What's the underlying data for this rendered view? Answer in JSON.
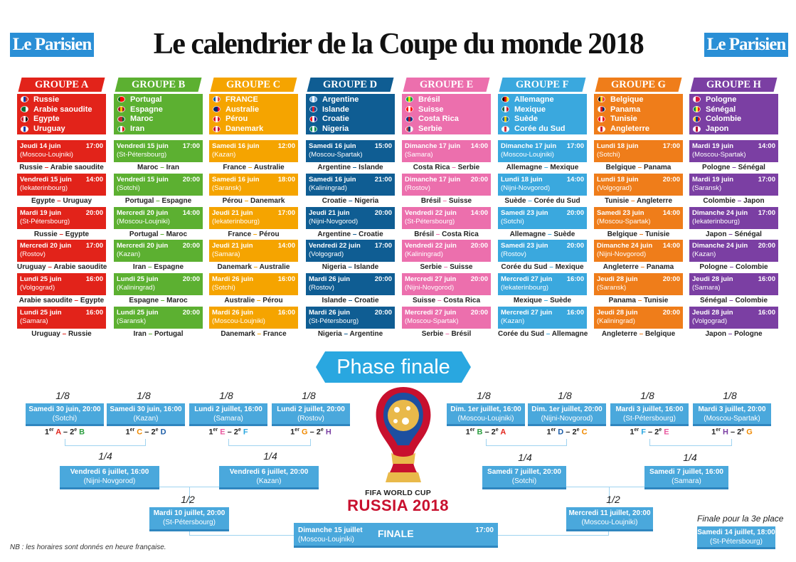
{
  "header": {
    "logo_text": "Le Parisien",
    "title": "Le calendrier de la Coupe du monde 2018"
  },
  "colors": {
    "A": "#e2231a",
    "B": "#5cb031",
    "C": "#f5a400",
    "D": "#0f5d93",
    "E": "#ec6fad",
    "F": "#3aa8de",
    "G": "#ef7d1a",
    "H": "#7b3fa3"
  },
  "groups": [
    {
      "name": "GROUPE A",
      "teams": [
        "Russie",
        "Arabie saoudite",
        "Egypte",
        "Uruguay"
      ],
      "flags": [
        [
          "#fff",
          "#0039a6",
          "#d52b1e"
        ],
        [
          "#006c35",
          "#006c35",
          "#fff"
        ],
        [
          "#ce1126",
          "#fff",
          "#000"
        ],
        [
          "#fff",
          "#0038a8",
          "#fff"
        ]
      ],
      "matches": [
        {
          "date": "Jeudi 14 juin",
          "time": "17:00",
          "venue": "(Moscou-Loujniki)",
          "home": "Russie",
          "away": "Arabie saoudite"
        },
        {
          "date": "Vendredi 15 juin",
          "time": "14:00",
          "venue": "(Iekaterinbourg)",
          "home": "Egypte",
          "away": "Uruguay"
        },
        {
          "date": "Mardi 19 juin",
          "time": "20:00",
          "venue": "(St-Pétersbourg)",
          "home": "Russie",
          "away": "Egypte"
        },
        {
          "date": "Mercredi 20 juin",
          "time": "17:00",
          "venue": "(Rostov)",
          "home": "Uruguay",
          "away": "Arabie saoudite"
        },
        {
          "date": "Lundi 25 juin",
          "time": "16:00",
          "venue": "(Volgograd)",
          "home": "Arabie saoudite",
          "away": "Egypte"
        },
        {
          "date": "Lundi 25 juin",
          "time": "16:00",
          "venue": "(Samara)",
          "home": "Uruguay",
          "away": "Russie"
        }
      ]
    },
    {
      "name": "GROUPE B",
      "teams": [
        "Portugal",
        "Espagne",
        "Maroc",
        "Iran"
      ],
      "flags": [
        [
          "#006600",
          "#ff0000",
          "#ff0000"
        ],
        [
          "#aa151b",
          "#f1bf00",
          "#aa151b"
        ],
        [
          "#c1272d",
          "#c1272d",
          "#006233"
        ],
        [
          "#239f40",
          "#fff",
          "#da0000"
        ]
      ],
      "matches": [
        {
          "date": "Vendredi 15 juin",
          "time": "17:00",
          "venue": "(St-Pétersbourg)",
          "home": "Maroc",
          "away": "Iran"
        },
        {
          "date": "Vendredi 15 juin",
          "time": "20:00",
          "venue": "(Sotchi)",
          "home": "Portugal",
          "away": "Espagne"
        },
        {
          "date": "Mercredi 20 juin",
          "time": "14:00",
          "venue": "(Moscou-Loujniki)",
          "home": "Portugal",
          "away": "Maroc"
        },
        {
          "date": "Mercredi 20 juin",
          "time": "20:00",
          "venue": "(Kazan)",
          "home": "Iran",
          "away": "Espagne"
        },
        {
          "date": "Lundi 25 juin",
          "time": "20:00",
          "venue": "(Kaliningrad)",
          "home": "Espagne",
          "away": "Maroc"
        },
        {
          "date": "Lundi 25 juin",
          "time": "20:00",
          "venue": "(Saransk)",
          "home": "Iran",
          "away": "Portugal"
        }
      ]
    },
    {
      "name": "GROUPE C",
      "teams": [
        "FRANCE",
        "Australie",
        "Pérou",
        "Danemark"
      ],
      "flags": [
        [
          "#0055a4",
          "#fff",
          "#ef4135"
        ],
        [
          "#012169",
          "#012169",
          "#e4002b"
        ],
        [
          "#d91023",
          "#fff",
          "#d91023"
        ],
        [
          "#c60c30",
          "#fff",
          "#c60c30"
        ]
      ],
      "matches": [
        {
          "date": "Samedi 16 juin",
          "time": "12:00",
          "venue": "(Kazan)",
          "home": "France",
          "away": "Australie"
        },
        {
          "date": "Samedi 16 juin",
          "time": "18:00",
          "venue": "(Saransk)",
          "home": "Pérou",
          "away": "Danemark"
        },
        {
          "date": "Jeudi 21 juin",
          "time": "17:00",
          "venue": "(Iekaterinbourg)",
          "home": "France",
          "away": "Pérou"
        },
        {
          "date": "Jeudi 21 juin",
          "time": "14:00",
          "venue": "(Samara)",
          "home": "Danemark",
          "away": "Australie"
        },
        {
          "date": "Mardi 26 juin",
          "time": "16:00",
          "venue": "(Sotchi)",
          "home": "Australie",
          "away": "Pérou"
        },
        {
          "date": "Mardi 26 juin",
          "time": "16:00",
          "venue": "(Moscou-Loujniki)",
          "home": "Danemark",
          "away": "France"
        }
      ]
    },
    {
      "name": "GROUPE D",
      "teams": [
        "Argentine",
        "Islande",
        "Croatie",
        "Nigeria"
      ],
      "flags": [
        [
          "#74acdf",
          "#fff",
          "#74acdf"
        ],
        [
          "#02529c",
          "#dc1e35",
          "#02529c"
        ],
        [
          "#ff0000",
          "#fff",
          "#171796"
        ],
        [
          "#008751",
          "#fff",
          "#008751"
        ]
      ],
      "matches": [
        {
          "date": "Samedi 16 juin",
          "time": "15:00",
          "venue": "(Moscou-Spartak)",
          "home": "Argentine",
          "away": "Islande"
        },
        {
          "date": "Samedi 16 juin",
          "time": "21:00",
          "venue": "(Kaliningrad)",
          "home": "Croatie",
          "away": "Nigeria"
        },
        {
          "date": "Jeudi 21 juin",
          "time": "20:00",
          "venue": "(Nijni-Novgorod)",
          "home": "Argentine",
          "away": "Croatie"
        },
        {
          "date": "Vendredi 22 juin",
          "time": "17:00",
          "venue": "(Volgograd)",
          "home": "Nigeria",
          "away": "Islande"
        },
        {
          "date": "Mardi 26 juin",
          "time": "20:00",
          "venue": "(Rostov)",
          "home": "Islande",
          "away": "Croatie"
        },
        {
          "date": "Mardi 26 juin",
          "time": "20:00",
          "venue": "(St-Pétersbourg)",
          "home": "Nigeria",
          "away": "Argentine"
        }
      ]
    },
    {
      "name": "GROUPE E",
      "teams": [
        "Brésil",
        "Suisse",
        "Costa Rica",
        "Serbie"
      ],
      "flags": [
        [
          "#009c3b",
          "#ffdf00",
          "#009c3b"
        ],
        [
          "#ff0000",
          "#fff",
          "#ff0000"
        ],
        [
          "#002b7f",
          "#ce1126",
          "#002b7f"
        ],
        [
          "#c6363c",
          "#0c4076",
          "#fff"
        ]
      ],
      "matches": [
        {
          "date": "Dimanche 17 juin",
          "time": "14:00",
          "venue": "(Samara)",
          "home": "Costa Rica",
          "away": "Serbie"
        },
        {
          "date": "Dimanche 17 juin",
          "time": "20:00",
          "venue": "(Rostov)",
          "home": "Brésil",
          "away": "Suisse"
        },
        {
          "date": "Vendredi 22 juin",
          "time": "14:00",
          "venue": "(St-Pétersbourg)",
          "home": "Brésil",
          "away": "Costa Rica"
        },
        {
          "date": "Vendredi 22 juin",
          "time": "20:00",
          "venue": "(Kaliningrad)",
          "home": "Serbie",
          "away": "Suisse"
        },
        {
          "date": "Mercredi 27 juin",
          "time": "20:00",
          "venue": "(Nijni-Novgorod)",
          "home": "Suisse",
          "away": "Costa Rica"
        },
        {
          "date": "Mercredi 27 juin",
          "time": "20:00",
          "venue": "(Moscou-Spartak)",
          "home": "Serbie",
          "away": "Brésil"
        }
      ]
    },
    {
      "name": "GROUPE F",
      "teams": [
        "Allemagne",
        "Mexique",
        "Suède",
        "Corée du Sud"
      ],
      "flags": [
        [
          "#000",
          "#dd0000",
          "#ffce00"
        ],
        [
          "#006847",
          "#fff",
          "#ce1126"
        ],
        [
          "#006aa7",
          "#fecc00",
          "#006aa7"
        ],
        [
          "#fff",
          "#cd2e3a",
          "#fff"
        ]
      ],
      "matches": [
        {
          "date": "Dimanche 17 juin",
          "time": "17:00",
          "venue": "(Moscou-Loujniki)",
          "home": "Allemagne",
          "away": "Mexique"
        },
        {
          "date": "Lundi 18 juin",
          "time": "14:00",
          "venue": "(Nijni-Novgorod)",
          "home": "Suède",
          "away": "Corée du Sud"
        },
        {
          "date": "Samedi 23 juin",
          "time": "20:00",
          "venue": "(Sotchi)",
          "home": "Allemagne",
          "away": "Suède"
        },
        {
          "date": "Samedi 23 juin",
          "time": "20:00",
          "venue": "(Rostov)",
          "home": "Corée du Sud",
          "away": "Mexique"
        },
        {
          "date": "Mercredi 27 juin",
          "time": "16:00",
          "venue": "(Iekaterinbourg)",
          "home": "Mexique",
          "away": "Suède"
        },
        {
          "date": "Mercredi 27 juin",
          "time": "16:00",
          "venue": "(Kazan)",
          "home": "Corée du Sud",
          "away": "Allemagne"
        }
      ]
    },
    {
      "name": "GROUPE G",
      "teams": [
        "Belgique",
        "Panama",
        "Tunisie",
        "Angleterre"
      ],
      "flags": [
        [
          "#000",
          "#fdda24",
          "#ef3340"
        ],
        [
          "#fff",
          "#da121a",
          "#072357"
        ],
        [
          "#e70013",
          "#fff",
          "#e70013"
        ],
        [
          "#fff",
          "#cf142b",
          "#fff"
        ]
      ],
      "matches": [
        {
          "date": "Lundi 18 juin",
          "time": "17:00",
          "venue": "(Sotchi)",
          "home": "Belgique",
          "away": "Panama"
        },
        {
          "date": "Lundi 18 juin",
          "time": "20:00",
          "venue": "(Volgograd)",
          "home": "Tunisie",
          "away": "Angleterre"
        },
        {
          "date": "Samedi 23 juin",
          "time": "14:00",
          "venue": "(Moscou-Spartak)",
          "home": "Belgique",
          "away": "Tunisie"
        },
        {
          "date": "Dimanche 24 juin",
          "time": "14:00",
          "venue": "(Nijni-Novgorod)",
          "home": "Angleterre",
          "away": "Panama"
        },
        {
          "date": "Jeudi 28 juin",
          "time": "20:00",
          "venue": "(Saransk)",
          "home": "Panama",
          "away": "Tunisie"
        },
        {
          "date": "Jeudi 28 juin",
          "time": "20:00",
          "venue": "(Kaliningrad)",
          "home": "Angleterre",
          "away": "Belgique"
        }
      ]
    },
    {
      "name": "GROUPE H",
      "teams": [
        "Pologne",
        "Sénégal",
        "Colombie",
        "Japon"
      ],
      "flags": [
        [
          "#fff",
          "#dc143c",
          "#dc143c"
        ],
        [
          "#00853f",
          "#fdef42",
          "#e31b23"
        ],
        [
          "#fcd116",
          "#003893",
          "#ce1126"
        ],
        [
          "#fff",
          "#bc002d",
          "#fff"
        ]
      ],
      "matches": [
        {
          "date": "Mardi 19 juin",
          "time": "14:00",
          "venue": "(Moscou-Spartak)",
          "home": "Pologne",
          "away": "Sénégal"
        },
        {
          "date": "Mardi 19 juin",
          "time": "17:00",
          "venue": "(Saransk)",
          "home": "Colombie",
          "away": "Japon"
        },
        {
          "date": "Dimanche 24 juin",
          "time": "17:00",
          "venue": "(Iekaterinbourg)",
          "home": "Japon",
          "away": "Sénégal"
        },
        {
          "date": "Dimanche 24 juin",
          "time": "20:00",
          "venue": "(Kazan)",
          "home": "Pologne",
          "away": "Colombie"
        },
        {
          "date": "Jeudi 28 juin",
          "time": "16:00",
          "venue": "(Samara)",
          "home": "Sénégal",
          "away": "Colombie"
        },
        {
          "date": "Jeudi 28 juin",
          "time": "16:00",
          "venue": "(Volgograd)",
          "home": "Japon",
          "away": "Pologne"
        }
      ]
    }
  ],
  "phase_finale": {
    "banner": "Phase finale",
    "label_r16": "1/8",
    "label_qf": "1/4",
    "label_sf": "1/2",
    "r16": [
      {
        "date": "Samedi 30 juin, 20:00",
        "venue": "(Sotchi)",
        "s1": "1",
        "g1": "A",
        "s2": "2",
        "g2": "B"
      },
      {
        "date": "Samedi 30 juin, 16:00",
        "venue": "(Kazan)",
        "s1": "1",
        "g1": "C",
        "s2": "2",
        "g2": "D"
      },
      {
        "date": "Lundi 2 juillet, 16:00",
        "venue": "(Samara)",
        "s1": "1",
        "g1": "E",
        "s2": "2",
        "g2": "F"
      },
      {
        "date": "Lundi 2 juillet, 20:00",
        "venue": "(Rostov)",
        "s1": "1",
        "g1": "G",
        "s2": "2",
        "g2": "H"
      },
      {
        "date": "Dim. 1er juillet, 16:00",
        "venue": "(Moscou-Loujniki)",
        "s1": "1",
        "g1": "B",
        "s2": "2",
        "g2": "A"
      },
      {
        "date": "Dim. 1er juillet, 20:00",
        "venue": "(Nijni-Novgorod)",
        "s1": "1",
        "g1": "D",
        "s2": "2",
        "g2": "C"
      },
      {
        "date": "Mardi 3 juillet, 16:00",
        "venue": "(St-Pétersbourg)",
        "s1": "1",
        "g1": "F",
        "s2": "2",
        "g2": "E"
      },
      {
        "date": "Mardi 3 juillet, 20:00",
        "venue": "(Moscou-Spartak)",
        "s1": "1",
        "g1": "H",
        "s2": "2",
        "g2": "G"
      }
    ],
    "qf": [
      {
        "date": "Vendredi 6 juillet, 16:00",
        "venue": "(Nijni-Novgorod)"
      },
      {
        "date": "Vendredi 6 juillet, 20:00",
        "venue": "(Kazan)"
      },
      {
        "date": "Samedi 7 juillet, 20:00",
        "venue": "(Sotchi)"
      },
      {
        "date": "Samedi 7 juillet, 16:00",
        "venue": "(Samara)"
      }
    ],
    "sf": [
      {
        "date": "Mardi 10 juillet, 20:00",
        "venue": "(St-Pétersbourg)"
      },
      {
        "date": "Mercredi 11 juillet, 20:00",
        "venue": "(Moscou-Loujniki)"
      }
    ],
    "final": {
      "date": "Dimanche 15 juillet",
      "venue": "(Moscou-Loujniki)",
      "label": "FINALE",
      "time": "17:00"
    },
    "third": {
      "label": "Finale pour la 3e place",
      "date": "Samedi 14 juillet, 18:00",
      "venue": "(St-Pétersbourg)"
    },
    "ordinal_er": "er",
    "ordinal_e": "e"
  },
  "wc_logo": {
    "line1": "FIFA WORLD CUP",
    "line2": "RUSSIA 2018"
  },
  "footnote": "NB : les horaires sont donnés en heure française."
}
